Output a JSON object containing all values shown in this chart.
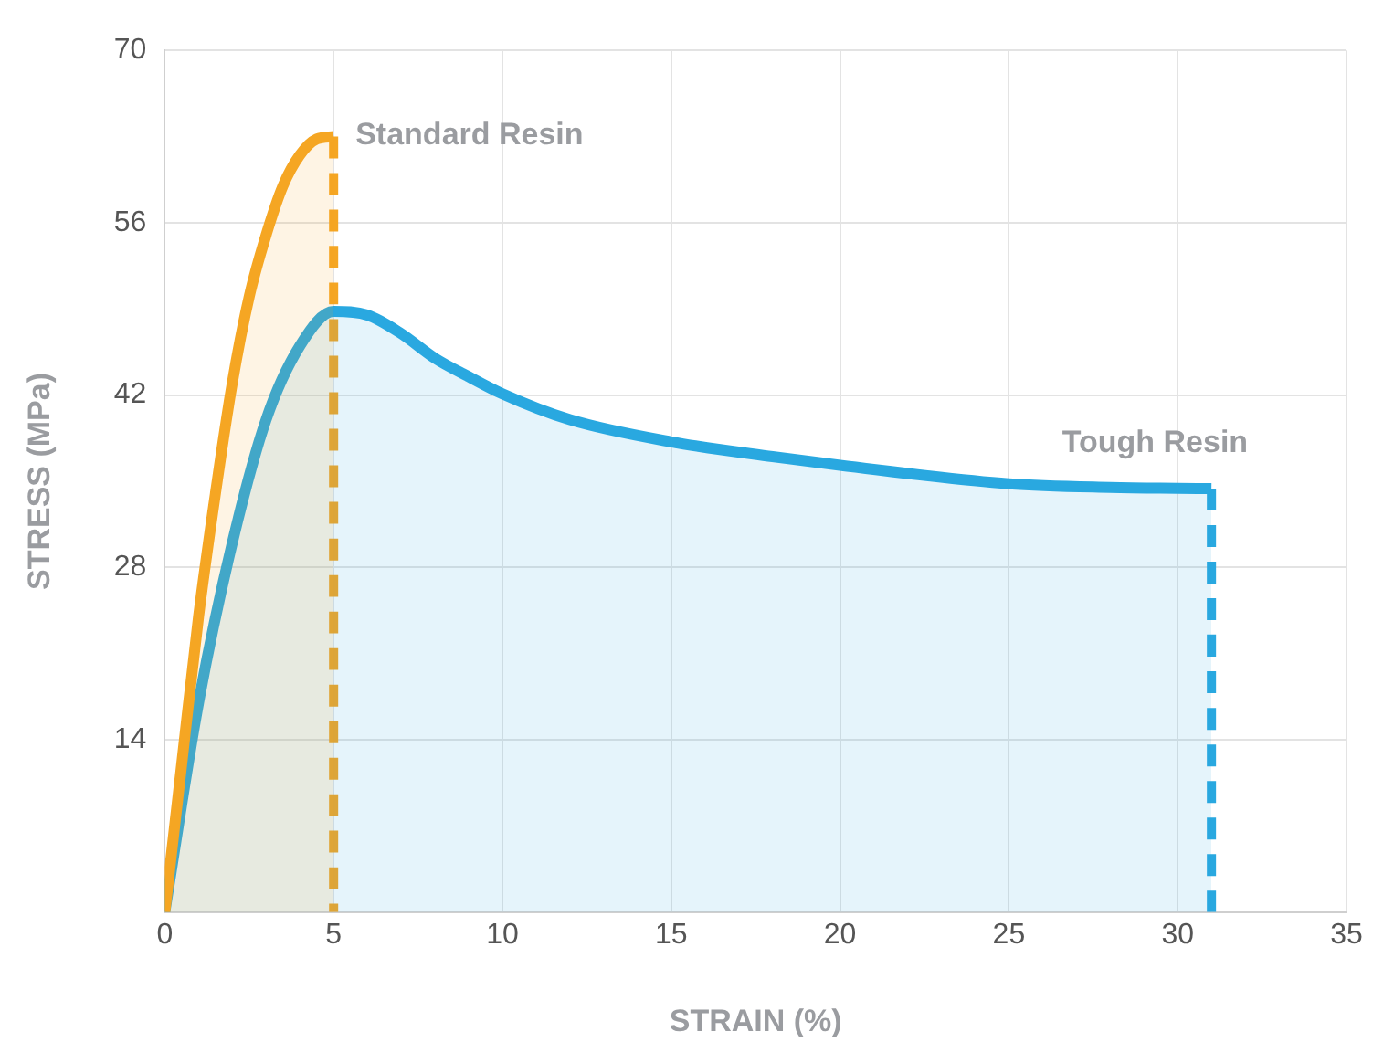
{
  "chart_data": {
    "type": "area",
    "xlabel": "STRAIN (%)",
    "ylabel": "STRESS (MPa)",
    "xlim": [
      0,
      35
    ],
    "xticks": [
      0,
      5,
      10,
      15,
      20,
      25,
      30,
      35
    ],
    "ylim": [
      0,
      70
    ],
    "yticks": [
      {
        "value": 0,
        "label": null
      },
      14,
      28,
      42,
      56,
      70
    ],
    "grid": true,
    "legend": false,
    "marker": "none",
    "series": [
      {
        "name": "Standard Resin",
        "color": "#f5a623",
        "x": [
          0,
          0.5,
          1,
          1.5,
          2,
          2.5,
          3,
          3.5,
          4,
          4.5,
          5
        ],
        "values": [
          0,
          12,
          24,
          34,
          43,
          50,
          55,
          59,
          61.5,
          62.8,
          63
        ]
      },
      {
        "name": "Tough Resin",
        "color": "#29a8e0",
        "x": [
          0,
          1,
          2,
          3,
          4,
          5,
          6,
          7,
          8,
          9,
          10,
          12,
          15,
          18,
          20,
          25,
          28,
          31
        ],
        "values": [
          0,
          17,
          30,
          40,
          46,
          48.8,
          48.5,
          47,
          45,
          43.5,
          42.1,
          40,
          38.2,
          37,
          36.3,
          34.8,
          34.5,
          34.4
        ]
      },
      {
        "type": "line",
        "line_style": "dashed",
        "color": "#f5a623",
        "x": [
          5,
          5
        ],
        "values": [
          63,
          0
        ]
      },
      {
        "type": "line",
        "line_style": "dashed",
        "color": "#29a8e0",
        "x": [
          31,
          31
        ],
        "values": [
          34.4,
          0
        ]
      }
    ]
  }
}
